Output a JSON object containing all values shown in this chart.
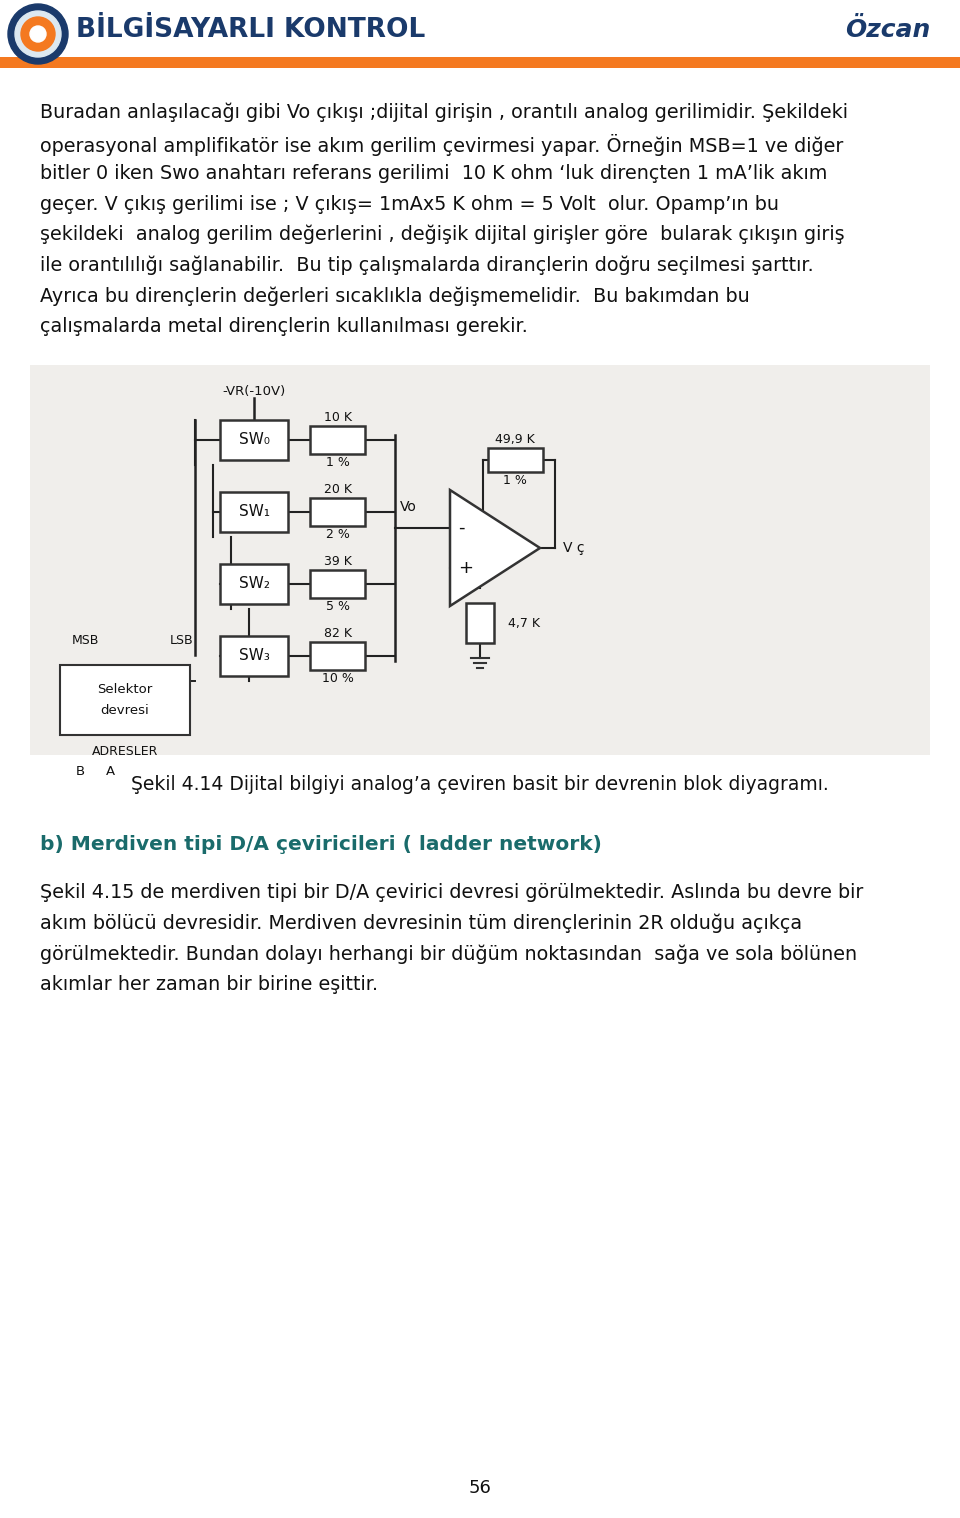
{
  "header_title": "BİLGİSAYARLI KONTROL",
  "header_right": "Özcan",
  "header_title_color": "#1a3a6b",
  "header_orange_color": "#f47920",
  "page_number": "56",
  "para1_lines": [
    "Buradan anlaşılacağı gibi Vo çıkışı ;dijital girişin , orantılı analog gerilimidir. Şekildeki",
    "operasyonal amplifikatör ise akım gerilim çevirmesi yapar. Örneğin MSB=1 ve diğer",
    "bitler 0 iken Swo anahtarı referans gerilimi  10 K ohm ‘luk dirençten 1 mA’lik akım",
    "geçer. V çıkış gerilimi ise ; V çıkış= 1mAx5 K ohm = 5 Volt  olur. Opamp’ın bu",
    "şekildeki  analog gerilim değerlerini , değişik dijital girişler göre  bularak çıkışın giriş",
    "ile orantılılığı sağlanabilir.  Bu tip çalışmalarda dirançlerin doğru seçilmesi şarttır.",
    "Ayrıca bu dirençlerin değerleri sıcaklıkla değişmemelidir.  Bu bakımdan bu",
    "çalışmalarda metal dirençlerin kullanılması gerekir."
  ],
  "figure_caption": "Şekil 4.14 Dijital bilgiyi analog’a çeviren basit bir devrenin blok diyagramı.",
  "section_b_title": "b) Merdiven tipi D/A çeviricileri ( ladder network)",
  "section_b_color": "#1a6b6b",
  "para2_lines": [
    "Şekil 4.15 de merdiven tipi bir D/A çevirici devresi görülmektedir. Aslında bu devre bir",
    "akım bölücü devresidir. Merdiven devresinin tüm dirençlerinin 2R olduğu açıkça",
    "görülmektedir. Bundan dolayı herhangi bir düğüm noktasından  sağa ve sola bölünen",
    "akımlar her zaman bir birine eşittir."
  ],
  "bg_color": "#ffffff",
  "text_color": "#111111",
  "switch_labels": [
    "SW₀",
    "SW₁",
    "SW₂",
    "SW₃"
  ],
  "resistor_labels": [
    "10 K",
    "20 K",
    "39 K",
    "82 K"
  ],
  "percent_labels": [
    "1 %",
    "2 %",
    "5 %",
    "10 %"
  ],
  "circuit_bg": "#eeeeee"
}
